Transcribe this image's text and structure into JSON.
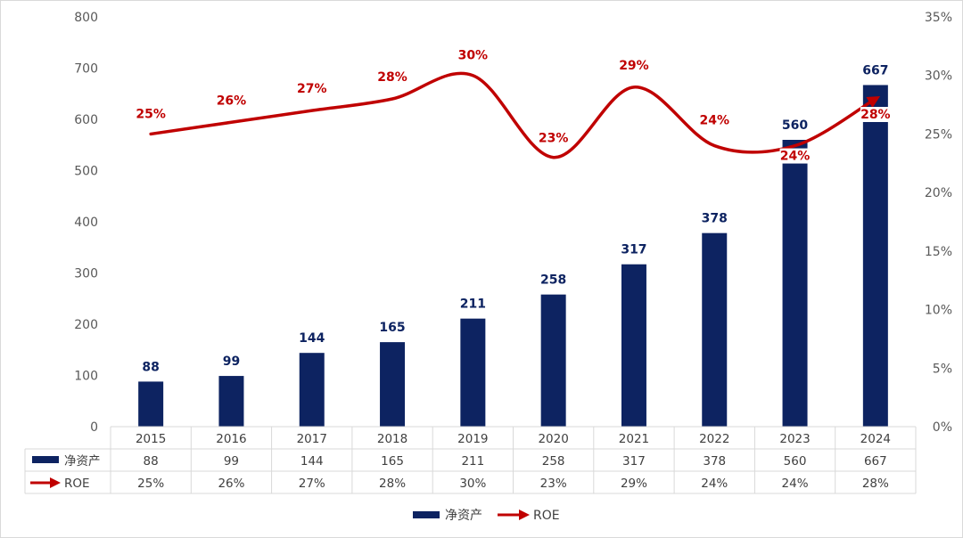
{
  "chart_data": {
    "type": "bar",
    "categories": [
      "2015",
      "2016",
      "2017",
      "2018",
      "2019",
      "2020",
      "2021",
      "2022",
      "2023",
      "2024"
    ],
    "series": [
      {
        "name": "净资产",
        "type": "bar",
        "axis": "left",
        "values": [
          88,
          99,
          144,
          165,
          211,
          258,
          317,
          378,
          560,
          667
        ]
      },
      {
        "name": "ROE",
        "type": "line",
        "axis": "right",
        "values": [
          25,
          26,
          27,
          28,
          30,
          23,
          29,
          24,
          24,
          28
        ]
      }
    ],
    "left_axis": {
      "ticks": [
        "0",
        "100",
        "200",
        "300",
        "400",
        "500",
        "600",
        "700",
        "800"
      ],
      "ylim": [
        0,
        800
      ]
    },
    "right_axis": {
      "ticks": [
        "0%",
        "5%",
        "10%",
        "15%",
        "20%",
        "25%",
        "30%",
        "35%"
      ],
      "ylim": [
        0,
        35
      ]
    },
    "table": {
      "rows": [
        {
          "label": "净资产",
          "values": [
            "88",
            "99",
            "144",
            "165",
            "211",
            "258",
            "317",
            "378",
            "560",
            "667"
          ]
        },
        {
          "label": "ROE",
          "values": [
            "25%",
            "26%",
            "27%",
            "28%",
            "30%",
            "23%",
            "29%",
            "24%",
            "24%",
            "28%"
          ]
        }
      ]
    },
    "data_labels": {
      "bars": [
        "88",
        "99",
        "144",
        "165",
        "211",
        "258",
        "317",
        "378",
        "560",
        "667"
      ],
      "roe": [
        "25%",
        "26%",
        "27%",
        "28%",
        "30%",
        "23%",
        "29%",
        "24%",
        "24%",
        "28%"
      ]
    },
    "legend": {
      "items": [
        "净资产",
        "ROE"
      ],
      "position": "bottom"
    },
    "colors": {
      "bar": "#0d2361",
      "line": "#c00000"
    },
    "grid": false
  }
}
